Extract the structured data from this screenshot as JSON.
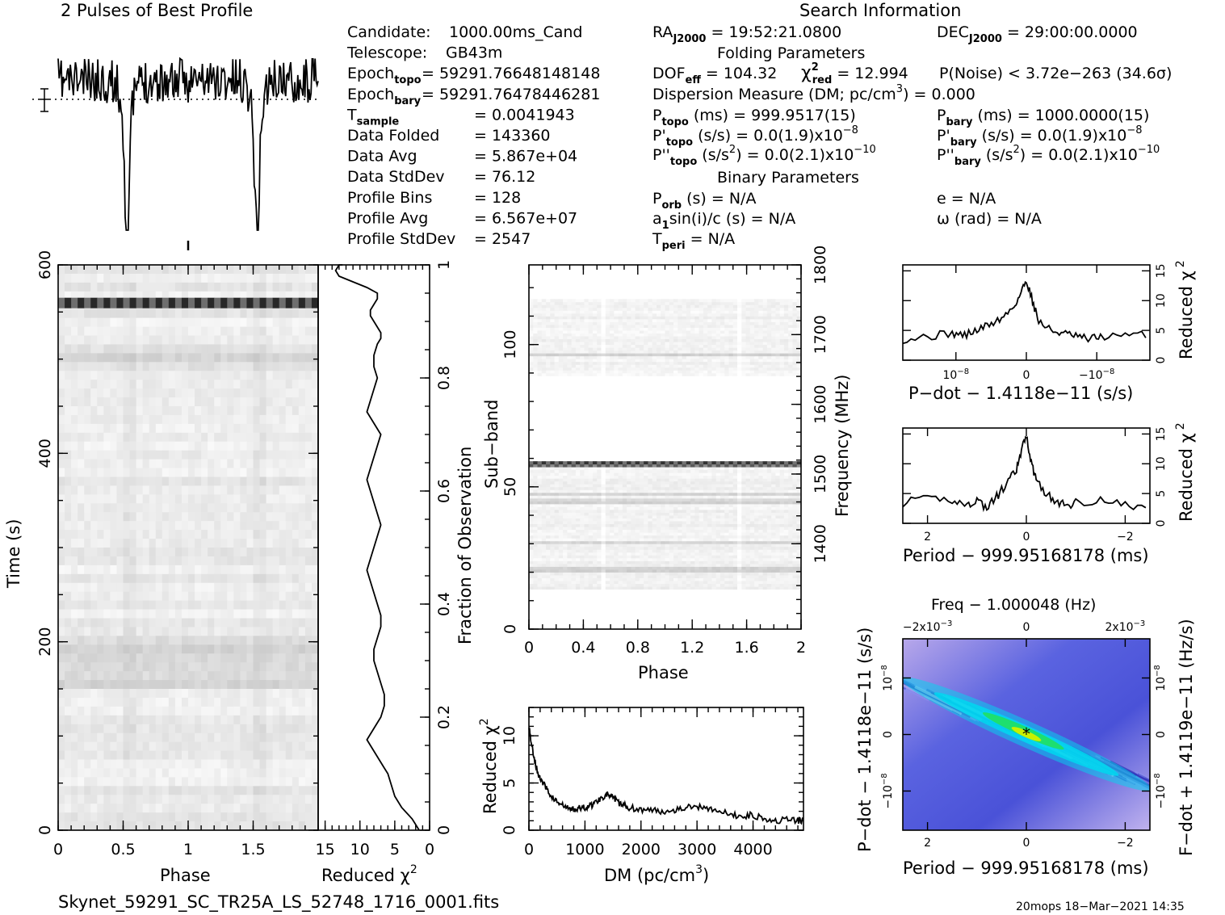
{
  "header": {
    "profile_title": "2 Pulses of Best Profile",
    "search_title": "Search Information",
    "folding_title": "Folding Parameters",
    "binary_title": "Binary Parameters"
  },
  "info_left": [
    {
      "label": "Candidate:",
      "sub": "",
      "value": "1000.00ms_Cand"
    },
    {
      "label": "Telescope:",
      "sub": "",
      "value": "GB43m"
    },
    {
      "label": "Epoch",
      "sub": "topo",
      "value": "= 59291.76648148148"
    },
    {
      "label": "Epoch",
      "sub": "bary",
      "value": "= 59291.76478446281"
    },
    {
      "label": "T",
      "sub": "sample",
      "value": "=  0.0041943"
    },
    {
      "label": "Data Folded",
      "sub": "",
      "value": "=  143360"
    },
    {
      "label": "Data Avg",
      "sub": "",
      "value": "=  5.867e+04"
    },
    {
      "label": "Data StdDev",
      "sub": "",
      "value": "=  76.12"
    },
    {
      "label": "Profile Bins",
      "sub": "",
      "value": "=  128"
    },
    {
      "label": "Profile Avg",
      "sub": "",
      "value": "=  6.567e+07"
    },
    {
      "label": "Profile StdDev",
      "sub": "",
      "value": "=  2547"
    }
  ],
  "search": {
    "ra": "RA",
    "ra_sub": "J2000",
    "ra_val": "= 19:52:21.0800",
    "dec": "DEC",
    "dec_sub": "J2000",
    "dec_val": "= 29:00:00.0000"
  },
  "folding": {
    "dof": "DOF",
    "dof_sub": "eff",
    "dof_val": "= 104.32",
    "chi": "χ",
    "chi_sup": "2",
    "chi_sub": "red",
    "chi_val": "= 12.994",
    "pnoise": "P(Noise) < 3.72e−263   (34.6σ)",
    "dm": "Dispersion Measure (DM; pc/cm",
    "dm_sup": "3",
    "dm_val": ") = 0.000",
    "ptopo": "P",
    "ptopo_sub": "topo",
    "ptopo_val": "(ms) =  999.9517(15)",
    "pbary": "P",
    "pbary_sub": "bary",
    "pbary_val": "(ms) =  1000.0000(15)",
    "pdtopo": "P'",
    "pdtopo_sub": "topo",
    "pdtopo_val": "(s/s) = 0.0(1.9)x10",
    "pdtopo_exp": "−8",
    "pdbary": "P'",
    "pdbary_sub": "bary",
    "pdbary_val": "(s/s) = 0.0(1.9)x10",
    "pdbary_exp": "−8",
    "pddtopo": "P''",
    "pddtopo_sub": "topo",
    "pddtopo_val": "(s/s",
    "pddtopo_sup": "2",
    "pddtopo_val2": ") = 0.0(2.1)x10",
    "pddtopo_exp": "−10",
    "pddbary": "P''",
    "pddbary_sub": "bary",
    "pddbary_val": "(s/s",
    "pddbary_sup": "2",
    "pddbary_val2": ") = 0.0(2.1)x10",
    "pddbary_exp": "−10"
  },
  "binary": {
    "porb": "P",
    "porb_sub": "orb",
    "porb_val": "(s) = N/A",
    "e": "e = N/A",
    "a1": "a",
    "a1_sub": "1",
    "a1_val": "sin(i)/c (s) = N/A",
    "omega": "ω (rad) = N/A",
    "tperi": "T",
    "tperi_sub": "peri",
    "tperi_val": "= N/A"
  },
  "footer": {
    "filename": "Skynet_59291_SC_TR25A_LS_52748_1716_0001.fits",
    "stamp": "20mops 18−Mar−2021 14:35"
  },
  "colors": {
    "ppdot_bg": "#5a63e0",
    "ppdot_ridge": "#00d8f0",
    "ppdot_core": "#20e060",
    "ppdot_light": "#c8b8f0"
  },
  "chart_data": [
    {
      "id": "profile",
      "type": "line",
      "title": "2 Pulses of Best Profile",
      "xlim": [
        0,
        2
      ],
      "pulse_phases": [
        0.53,
        1.53
      ],
      "note": "Two dips visible at phase ~0.53 and ~1.53"
    },
    {
      "id": "time-phase",
      "type": "heatmap",
      "xlabel": "Phase",
      "ylabel": "Time (s)",
      "xlim": [
        0,
        2
      ],
      "ylim": [
        0,
        600
      ],
      "xticks": [
        "0",
        "0.5",
        "1",
        "1.5"
      ],
      "yticks": [
        "0",
        "200",
        "400",
        "600"
      ],
      "dark_band_time": 560
    },
    {
      "id": "time-redchi",
      "type": "line",
      "xlabel": "Reduced χ",
      "xlabel_sup": "2",
      "ylabel_right": "Fraction of Observation",
      "xticks": [
        "15",
        "10",
        "5",
        "0"
      ],
      "yticks_right": [
        "0",
        "0.2",
        "0.4",
        "0.6",
        "0.8",
        "1"
      ],
      "x": [
        1.5,
        2.5,
        4,
        5,
        5.5,
        6,
        6.5,
        7,
        7.5,
        8,
        8.5,
        9,
        8.5,
        8,
        7.5,
        7,
        6.5,
        6.5,
        7,
        7.5,
        8,
        8,
        7.5,
        7,
        7,
        7.5,
        8,
        8.5,
        9,
        8.5,
        8,
        7.5,
        7,
        7.5,
        8,
        8.5,
        9,
        8.5,
        8,
        7.5,
        7,
        8,
        9,
        8.5,
        8,
        7.5,
        8,
        8,
        7.5,
        7,
        7,
        7.5,
        8,
        8.5,
        8.5,
        8,
        7.5,
        7.5,
        9,
        11,
        13,
        13.5,
        13,
        12.5
      ],
      "y": [
        0,
        0.02,
        0.04,
        0.06,
        0.08,
        0.1,
        0.11,
        0.12,
        0.13,
        0.14,
        0.15,
        0.16,
        0.17,
        0.18,
        0.19,
        0.2,
        0.22,
        0.24,
        0.26,
        0.28,
        0.3,
        0.32,
        0.34,
        0.36,
        0.38,
        0.4,
        0.42,
        0.44,
        0.46,
        0.48,
        0.5,
        0.52,
        0.54,
        0.56,
        0.58,
        0.6,
        0.62,
        0.64,
        0.66,
        0.68,
        0.7,
        0.72,
        0.74,
        0.76,
        0.78,
        0.8,
        0.82,
        0.84,
        0.86,
        0.87,
        0.88,
        0.89,
        0.9,
        0.91,
        0.92,
        0.93,
        0.94,
        0.95,
        0.96,
        0.97,
        0.98,
        0.99,
        1.0,
        1.0
      ]
    },
    {
      "id": "subband-phase",
      "type": "heatmap",
      "xlabel": "Phase",
      "ylabel": "Sub−band",
      "ylabel_right": "Frequency (MHz)",
      "xlim": [
        0,
        2
      ],
      "ylim": [
        0,
        128
      ],
      "xticks": [
        "0",
        "0.4",
        "0.8",
        "1.2",
        "1.6",
        "2"
      ],
      "yticks": [
        "0",
        "50",
        "100"
      ],
      "yticks_right": [
        "1400",
        "1500",
        "1600",
        "1700",
        "1800"
      ],
      "empty_band": [
        59,
        89
      ]
    },
    {
      "id": "dm-redchi",
      "type": "line",
      "xlabel": "DM (pc/cm",
      "xlabel_sup": "3",
      "ylabel": "Reduced χ",
      "ylabel_sup": "2",
      "xticks": [
        "0",
        "1000",
        "2000",
        "3000",
        "4000"
      ],
      "yticks": [
        "0",
        "5",
        "10"
      ],
      "xlim": [
        0,
        4900
      ],
      "ylim": [
        0,
        13
      ],
      "x": [
        0,
        50,
        100,
        150,
        200,
        300,
        400,
        500,
        600,
        700,
        800,
        900,
        1000,
        1100,
        1200,
        1300,
        1400,
        1500,
        1600,
        1700,
        1800,
        2000,
        2200,
        2400,
        2600,
        2800,
        3000,
        3200,
        3400,
        3600,
        3800,
        4000,
        4200,
        4400,
        4600,
        4800,
        4900
      ],
      "y": [
        11,
        9,
        7.5,
        6.2,
        5.5,
        4.5,
        3.6,
        3.0,
        2.6,
        2.3,
        2.2,
        2.3,
        2.4,
        2.6,
        3.0,
        3.5,
        3.8,
        3.4,
        2.9,
        2.6,
        2.4,
        2.2,
        2.1,
        2.0,
        2.2,
        2.4,
        2.5,
        2.4,
        2.0,
        1.6,
        1.5,
        1.6,
        1.3,
        1.0,
        1.1,
        1.0,
        1.0
      ]
    },
    {
      "id": "pdot-redchi",
      "type": "line",
      "xlabel": "P−dot − 1.4118e−11 (s/s)",
      "ylabel_right": "Reduced χ",
      "ylabel_sup": "2",
      "xticks": [
        "10",
        "0",
        "−10"
      ],
      "xticks_exp": "−8",
      "yticks_right": [
        "0",
        "5",
        "10",
        "15"
      ],
      "ylim": [
        0,
        15
      ],
      "x": [
        -1.0,
        -0.8,
        -0.6,
        -0.5,
        -0.4,
        -0.3,
        -0.2,
        -0.1,
        -0.05,
        0,
        0.05,
        0.1,
        0.2,
        0.3,
        0.4,
        0.5,
        0.6,
        0.8,
        1.0
      ],
      "y": [
        3.5,
        4.0,
        4.5,
        4.2,
        5.0,
        6.0,
        7.0,
        9.0,
        11.0,
        13.5,
        10.0,
        6.5,
        5.0,
        4.5,
        4.0,
        3.5,
        4.0,
        4.0,
        4.5
      ]
    },
    {
      "id": "period-redchi",
      "type": "line",
      "xlabel": "Period − 999.95168178 (ms)",
      "ylabel_right": "Reduced χ",
      "ylabel_sup": "2",
      "xticks": [
        "2",
        "0",
        "−2"
      ],
      "yticks_right": [
        "0",
        "5",
        "10",
        "15"
      ],
      "xlim": [
        2.5,
        -2.5
      ],
      "ylim": [
        0,
        16
      ],
      "x": [
        2.5,
        2.0,
        1.5,
        1.2,
        1.0,
        0.8,
        0.6,
        0.4,
        0.2,
        0.1,
        0,
        -0.1,
        -0.2,
        -0.4,
        -0.6,
        -0.8,
        -1.0,
        -1.5,
        -2.0,
        -2.5
      ],
      "y": [
        3.5,
        4.0,
        4.0,
        3.0,
        4.0,
        2.5,
        4.5,
        6.5,
        9.0,
        12.0,
        15.0,
        10.0,
        7.5,
        5.0,
        3.5,
        3.0,
        3.5,
        4.0,
        3.0,
        2.5
      ]
    },
    {
      "id": "p-pdot",
      "type": "heatmap",
      "title": "Freq − 1.000048 (Hz)",
      "xlabel": "Period − 999.95168178 (ms)",
      "ylabel": "P−dot − 1.4118e−11 (s/s)",
      "ylabel_right": "F−dot + 1.4119e−11 (Hz/s)",
      "xticks": [
        "2",
        "0",
        "−2"
      ],
      "xticks_top": [
        "−2x10",
        "0",
        "2x10"
      ],
      "xticks_top_exp": "−3",
      "yticks": [
        "10",
        "0",
        "−10"
      ],
      "yticks_exp": "−8",
      "yticks_right": [
        "10",
        "0",
        "−10"
      ],
      "yticks_right_exp": "−8",
      "peak": [
        0,
        0
      ]
    }
  ]
}
